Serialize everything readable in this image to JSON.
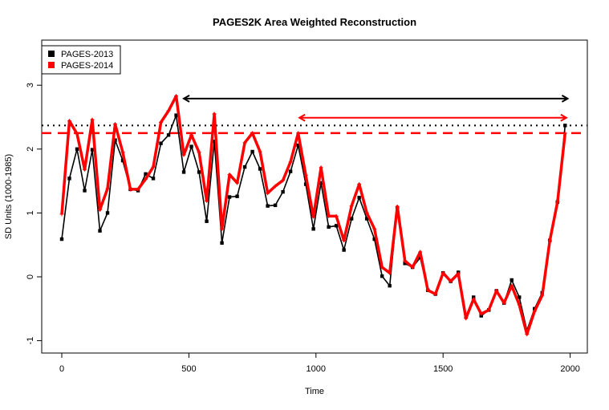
{
  "chart_data": {
    "type": "line",
    "title": "PAGES2K Area Weighted Reconstruction",
    "xlabel": "Time",
    "ylabel": "SD Units (1000-1985)",
    "xlim": [
      -80,
      2070
    ],
    "ylim": [
      -1.2,
      3.7
    ],
    "xticks": [
      0,
      500,
      1000,
      1500,
      2000
    ],
    "yticks": [
      -1,
      0,
      1,
      2,
      3
    ],
    "grid": false,
    "legend_position": "top-left",
    "x": [
      0,
      30,
      60,
      90,
      120,
      150,
      180,
      210,
      240,
      270,
      300,
      330,
      360,
      390,
      420,
      450,
      480,
      510,
      540,
      570,
      600,
      630,
      660,
      690,
      720,
      750,
      780,
      810,
      840,
      870,
      900,
      930,
      960,
      990,
      1020,
      1050,
      1080,
      1110,
      1140,
      1170,
      1200,
      1230,
      1260,
      1290,
      1320,
      1350,
      1380,
      1410,
      1440,
      1470,
      1500,
      1530,
      1560,
      1590,
      1620,
      1650,
      1680,
      1710,
      1740,
      1770,
      1800,
      1830,
      1860,
      1890,
      1920,
      1950,
      1980
    ],
    "series": [
      {
        "name": "PAGES-2013",
        "color": "#000000",
        "values": [
          0.59,
          1.54,
          2.0,
          1.35,
          1.99,
          0.72,
          1.0,
          2.14,
          1.82,
          1.37,
          1.35,
          1.61,
          1.54,
          2.09,
          2.22,
          2.53,
          1.64,
          2.04,
          1.64,
          0.87,
          2.12,
          0.53,
          1.25,
          1.26,
          1.72,
          1.96,
          1.69,
          1.11,
          1.12,
          1.33,
          1.65,
          2.06,
          1.45,
          0.75,
          1.47,
          0.78,
          0.8,
          0.42,
          0.91,
          1.24,
          0.91,
          0.59,
          0.01,
          -0.14,
          1.08,
          0.21,
          0.15,
          0.3,
          -0.21,
          -0.27,
          0.06,
          -0.07,
          0.07,
          -0.62,
          -0.32,
          -0.61,
          -0.52,
          -0.22,
          -0.41,
          -0.05,
          -0.32,
          -0.84,
          -0.5,
          -0.25,
          0.57,
          1.17,
          2.37
        ]
      },
      {
        "name": "PAGES-2014",
        "color": "#ff0000",
        "values": [
          0.98,
          2.44,
          2.24,
          1.68,
          2.46,
          1.05,
          1.38,
          2.39,
          1.95,
          1.37,
          1.37,
          1.53,
          1.72,
          2.42,
          2.6,
          2.83,
          1.91,
          2.22,
          1.95,
          1.19,
          2.55,
          0.75,
          1.6,
          1.47,
          2.1,
          2.25,
          1.96,
          1.31,
          1.42,
          1.51,
          1.8,
          2.25,
          1.59,
          0.94,
          1.71,
          0.95,
          0.95,
          0.57,
          1.11,
          1.45,
          1.0,
          0.75,
          0.15,
          0.06,
          1.1,
          0.25,
          0.15,
          0.39,
          -0.21,
          -0.27,
          0.06,
          -0.07,
          0.05,
          -0.65,
          -0.35,
          -0.58,
          -0.52,
          -0.22,
          -0.41,
          -0.14,
          -0.44,
          -0.9,
          -0.54,
          -0.29,
          0.57,
          1.17,
          2.25
        ]
      }
    ],
    "reference_lines": [
      {
        "y": 2.37,
        "color": "#000000",
        "style": "dotted"
      },
      {
        "y": 2.25,
        "color": "#ff0000",
        "style": "dashed"
      }
    ],
    "arrows": [
      {
        "x_from": 480,
        "x_to": 1990,
        "y": 2.79,
        "color": "#000000"
      },
      {
        "x_from": 935,
        "x_to": 1985,
        "y": 2.49,
        "color": "#ff0000"
      }
    ]
  }
}
